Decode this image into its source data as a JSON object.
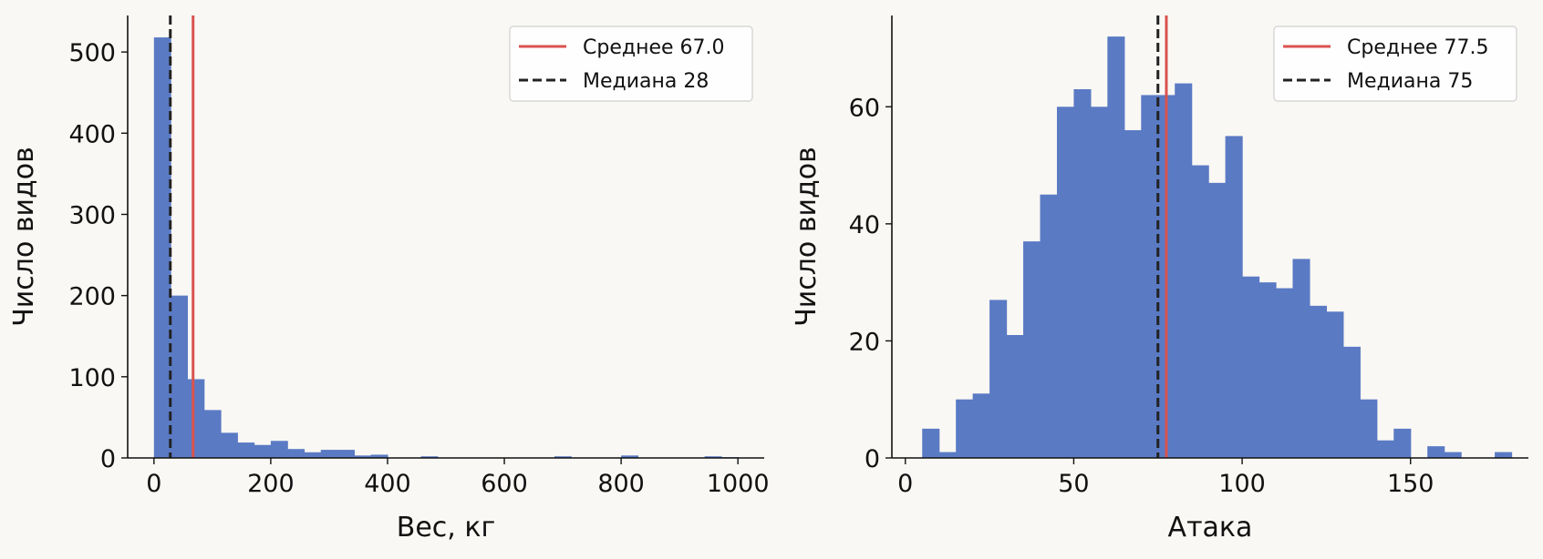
{
  "colors": {
    "background": "#faf8f4",
    "bars": "#5a7ac4",
    "mean_line": "#d9534f",
    "median_line": "#222222",
    "axis": "#111111"
  },
  "chart_data": [
    {
      "type": "bar",
      "title": "",
      "xlabel": "Вес, кг",
      "ylabel": "Число видов",
      "xlim": [
        -45,
        1045
      ],
      "ylim": [
        0,
        545
      ],
      "xticks": [
        0,
        200,
        400,
        600,
        800,
        1000
      ],
      "yticks": [
        0,
        100,
        200,
        300,
        400,
        500
      ],
      "grid": false,
      "legend_position": "top-right",
      "bin_width": 28.57,
      "bins": [
        {
          "x0": 0,
          "count": 518
        },
        {
          "x0": 28.57,
          "count": 200
        },
        {
          "x0": 57.14,
          "count": 97
        },
        {
          "x0": 85.71,
          "count": 59
        },
        {
          "x0": 114.29,
          "count": 31
        },
        {
          "x0": 142.86,
          "count": 19
        },
        {
          "x0": 171.43,
          "count": 16
        },
        {
          "x0": 200,
          "count": 21
        },
        {
          "x0": 228.57,
          "count": 11
        },
        {
          "x0": 257.14,
          "count": 7
        },
        {
          "x0": 285.71,
          "count": 10
        },
        {
          "x0": 314.29,
          "count": 10
        },
        {
          "x0": 342.86,
          "count": 3
        },
        {
          "x0": 371.43,
          "count": 4
        },
        {
          "x0": 457.14,
          "count": 2
        },
        {
          "x0": 685.71,
          "count": 2
        },
        {
          "x0": 800,
          "count": 3
        },
        {
          "x0": 942.86,
          "count": 2
        },
        {
          "x0": 971.43,
          "count": 1
        }
      ],
      "mean": 67.0,
      "median": 28,
      "legend": [
        {
          "label": "Среднее 67.0",
          "style": "solid"
        },
        {
          "label": "Медиана 28",
          "style": "dashed"
        }
      ]
    },
    {
      "type": "bar",
      "title": "",
      "xlabel": "Атака",
      "ylabel": "Число видов",
      "xlim": [
        -4,
        185
      ],
      "ylim": [
        0,
        75.6
      ],
      "xticks": [
        0,
        50,
        100,
        150
      ],
      "yticks": [
        0,
        20,
        40,
        60
      ],
      "grid": false,
      "legend_position": "top-right",
      "bin_width": 5,
      "bins": [
        {
          "x0": 5,
          "count": 5
        },
        {
          "x0": 10,
          "count": 1
        },
        {
          "x0": 15,
          "count": 10
        },
        {
          "x0": 20,
          "count": 11
        },
        {
          "x0": 25,
          "count": 27
        },
        {
          "x0": 30,
          "count": 21
        },
        {
          "x0": 35,
          "count": 37
        },
        {
          "x0": 40,
          "count": 45
        },
        {
          "x0": 45,
          "count": 60
        },
        {
          "x0": 50,
          "count": 63
        },
        {
          "x0": 55,
          "count": 60
        },
        {
          "x0": 60,
          "count": 72
        },
        {
          "x0": 65,
          "count": 56
        },
        {
          "x0": 70,
          "count": 62
        },
        {
          "x0": 75,
          "count": 62
        },
        {
          "x0": 80,
          "count": 64
        },
        {
          "x0": 85,
          "count": 50
        },
        {
          "x0": 90,
          "count": 47
        },
        {
          "x0": 95,
          "count": 55
        },
        {
          "x0": 100,
          "count": 31
        },
        {
          "x0": 105,
          "count": 30
        },
        {
          "x0": 110,
          "count": 29
        },
        {
          "x0": 115,
          "count": 34
        },
        {
          "x0": 120,
          "count": 26
        },
        {
          "x0": 125,
          "count": 25
        },
        {
          "x0": 130,
          "count": 19
        },
        {
          "x0": 135,
          "count": 10
        },
        {
          "x0": 140,
          "count": 3
        },
        {
          "x0": 145,
          "count": 5
        },
        {
          "x0": 155,
          "count": 2
        },
        {
          "x0": 160,
          "count": 1
        },
        {
          "x0": 175,
          "count": 1
        }
      ],
      "mean": 77.5,
      "median": 75,
      "legend": [
        {
          "label": "Среднее 77.5",
          "style": "solid"
        },
        {
          "label": "Медиана 75",
          "style": "dashed"
        }
      ]
    }
  ]
}
